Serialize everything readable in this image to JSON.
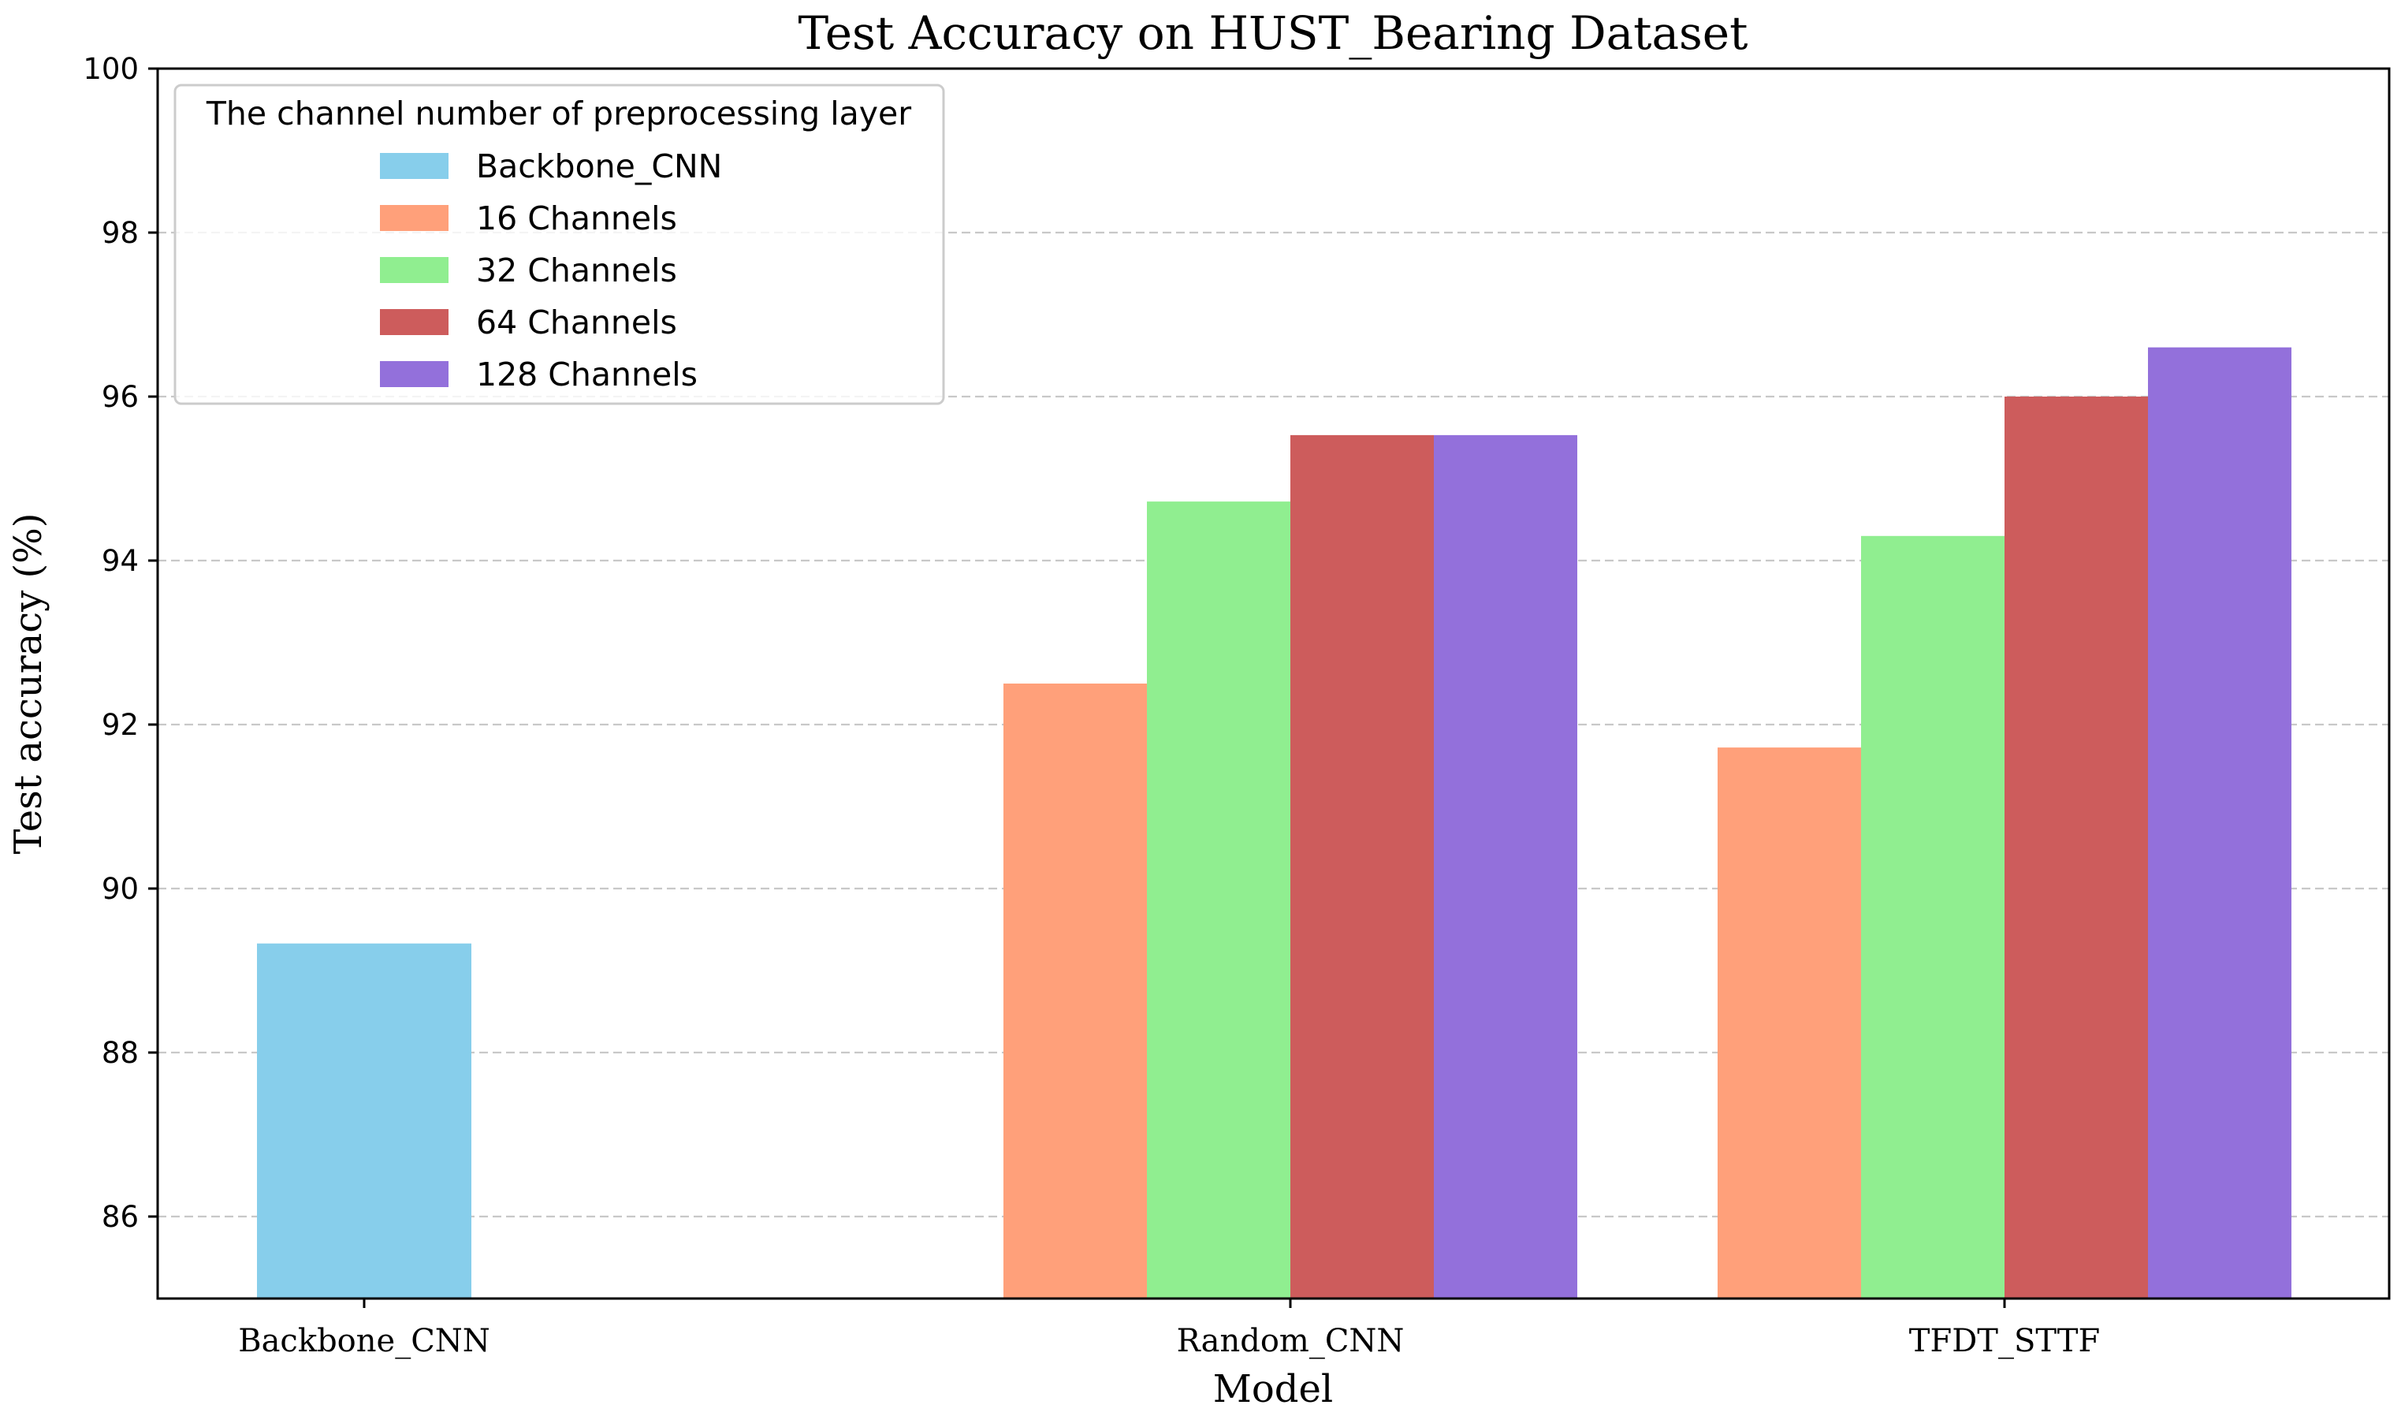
{
  "chart_data": {
    "type": "bar",
    "title": "Test Accuracy on HUST_Bearing Dataset",
    "xlabel": "Model",
    "ylabel": "Test accuracy (%)",
    "categories": [
      "Backbone_CNN",
      "Random_CNN",
      "TFDT_STTF"
    ],
    "ylim": [
      85,
      100
    ],
    "yticks": [
      86,
      88,
      90,
      92,
      94,
      96,
      98,
      100
    ],
    "grid": "horizontal dashed",
    "legend": {
      "title": "The channel number of preprocessing layer",
      "placement": "upper-left"
    },
    "series": [
      {
        "name": "Backbone_CNN",
        "color": "#87ceeb",
        "values": [
          89.33,
          null,
          null
        ]
      },
      {
        "name": "16 Channels",
        "color": "#ffa07a",
        "values": [
          null,
          92.5,
          91.72
        ]
      },
      {
        "name": "32 Channels",
        "color": "#90ee90",
        "values": [
          null,
          94.72,
          94.3
        ]
      },
      {
        "name": "64 Channels",
        "color": "#cd5c5c",
        "values": [
          null,
          95.53,
          96.0
        ]
      },
      {
        "name": "128 Channels",
        "color": "#9370db",
        "values": [
          null,
          95.53,
          96.6
        ]
      }
    ]
  }
}
